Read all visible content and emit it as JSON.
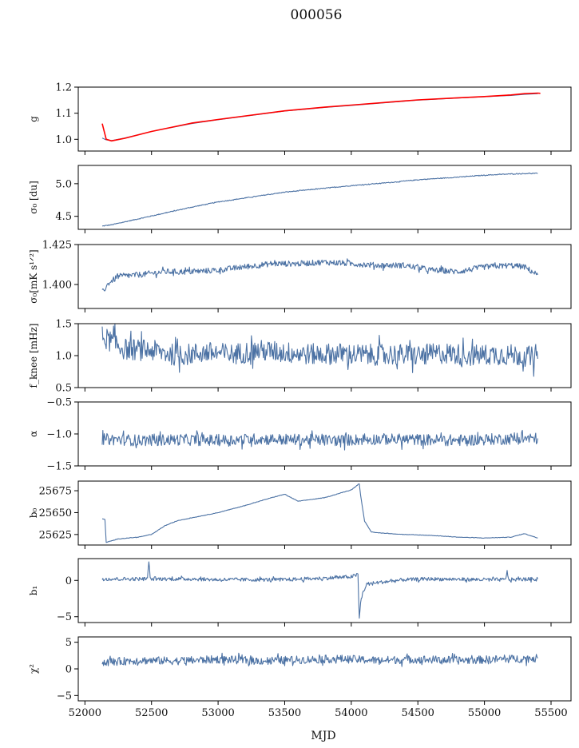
{
  "figure": {
    "title": "000056",
    "xlabel": "MJD"
  },
  "colors": {
    "series": "#4c72a4",
    "model": "#ff0000",
    "axis": "#000000"
  },
  "chart_data": [
    {
      "type": "line",
      "id": "g",
      "ylabel": "g",
      "xlim": [
        51950,
        55650
      ],
      "ylim": [
        0.955,
        1.2
      ],
      "yticks": [
        1.0,
        1.1,
        1.2
      ],
      "ytick_labels": [
        "1.0",
        "1.1",
        "1.2"
      ],
      "xticks": [
        52000,
        52500,
        53000,
        53500,
        54000,
        54500,
        55000,
        55500
      ],
      "show_xtick_labels": false,
      "series": [
        {
          "color": "#4c72a4",
          "x": [
            52130,
            52160,
            52200,
            52300,
            52500,
            52800,
            53000,
            53300,
            53500,
            53800,
            54000,
            54300,
            54500,
            54800,
            55000,
            55200,
            55300,
            55400
          ],
          "y": [
            1.005,
            0.998,
            0.995,
            1.005,
            1.03,
            1.06,
            1.075,
            1.095,
            1.108,
            1.122,
            1.13,
            1.142,
            1.15,
            1.158,
            1.163,
            1.168,
            1.172,
            1.175
          ]
        },
        {
          "color": "#ff0000",
          "x": [
            52130,
            52160,
            52200,
            52300,
            52500,
            52800,
            53000,
            53300,
            53500,
            53800,
            54000,
            54300,
            54500,
            54800,
            55000,
            55200,
            55300,
            55400,
            55420
          ],
          "y": [
            1.06,
            1.0,
            0.994,
            1.004,
            1.03,
            1.062,
            1.076,
            1.096,
            1.109,
            1.123,
            1.131,
            1.143,
            1.151,
            1.159,
            1.164,
            1.17,
            1.175,
            1.177,
            1.176
          ]
        }
      ]
    },
    {
      "type": "line",
      "id": "sigma_du",
      "ylabel": "σ₀ [du]",
      "xlim": [
        51950,
        55650
      ],
      "ylim": [
        4.3,
        5.28
      ],
      "yticks": [
        4.5,
        5.0
      ],
      "ytick_labels": [
        "4.5",
        "5.0"
      ],
      "xticks": [
        52000,
        52500,
        53000,
        53500,
        54000,
        54500,
        55000,
        55500
      ],
      "show_xtick_labels": false,
      "series": [
        {
          "color": "#4c72a4",
          "x": [
            52130,
            52200,
            52400,
            52600,
            52800,
            53000,
            53300,
            53500,
            53800,
            54000,
            54300,
            54500,
            54800,
            55000,
            55200,
            55400
          ],
          "y": [
            4.35,
            4.37,
            4.46,
            4.55,
            4.64,
            4.72,
            4.81,
            4.87,
            4.93,
            4.97,
            5.02,
            5.06,
            5.1,
            5.13,
            5.15,
            5.16
          ]
        }
      ]
    },
    {
      "type": "line",
      "id": "sigma_mks",
      "ylabel": "σ₀[mK s¹ᐟ²]",
      "xlim": [
        51950,
        55650
      ],
      "ylim": [
        1.385,
        1.425
      ],
      "yticks": [
        1.4,
        1.425
      ],
      "ytick_labels": [
        "1.400",
        "1.425"
      ],
      "xticks": [
        52000,
        52500,
        53000,
        53500,
        54000,
        54500,
        55000,
        55500
      ],
      "show_xtick_labels": false,
      "series": [
        {
          "color": "#4c72a4",
          "x": [
            52130,
            52180,
            52250,
            52400,
            52600,
            52800,
            53000,
            53200,
            53400,
            53600,
            53800,
            54000,
            54200,
            54400,
            54600,
            54800,
            55000,
            55200,
            55300,
            55400
          ],
          "y": [
            1.395,
            1.401,
            1.405,
            1.406,
            1.408,
            1.408,
            1.409,
            1.411,
            1.413,
            1.413,
            1.414,
            1.413,
            1.412,
            1.412,
            1.409,
            1.408,
            1.411,
            1.412,
            1.411,
            1.406
          ]
        }
      ]
    },
    {
      "type": "line",
      "id": "fknee",
      "ylabel": "f_knee [mHz]",
      "xlim": [
        51950,
        55650
      ],
      "ylim": [
        0.5,
        1.5
      ],
      "yticks": [
        0.5,
        1.0,
        1.5
      ],
      "ytick_labels": [
        "0.5",
        "1.0",
        "1.5"
      ],
      "xticks": [
        52000,
        52500,
        53000,
        53500,
        54000,
        54500,
        55000,
        55500
      ],
      "show_xtick_labels": false,
      "series": [
        {
          "color": "#4c72a4",
          "x": [
            52130,
            52300,
            52500,
            52700,
            52900,
            53100,
            53300,
            53500,
            53700,
            53900,
            54100,
            54300,
            54500,
            54700,
            54900,
            55100,
            55300,
            55400
          ],
          "y": [
            1.3,
            1.1,
            1.08,
            1.0,
            1.05,
            1.02,
            1.08,
            1.05,
            1.02,
            1.03,
            1.01,
            1.02,
            1.0,
            1.04,
            1.0,
            1.02,
            1.0,
            0.95
          ]
        }
      ]
    },
    {
      "type": "line",
      "id": "alpha",
      "ylabel": "α",
      "xlim": [
        51950,
        55650
      ],
      "ylim": [
        -1.5,
        -0.5
      ],
      "yticks": [
        -1.5,
        -1.0,
        -0.5
      ],
      "ytick_labels": [
        "−1.5",
        "−1.0",
        "−0.5"
      ],
      "xticks": [
        52000,
        52500,
        53000,
        53500,
        54000,
        54500,
        55000,
        55500
      ],
      "show_xtick_labels": false,
      "series": [
        {
          "color": "#4c72a4",
          "x": [
            52130,
            52400,
            52700,
            53000,
            53300,
            53600,
            53900,
            54200,
            54500,
            54800,
            55100,
            55400
          ],
          "y": [
            -1.08,
            -1.1,
            -1.09,
            -1.1,
            -1.08,
            -1.09,
            -1.1,
            -1.08,
            -1.09,
            -1.1,
            -1.08,
            -1.07
          ]
        }
      ]
    },
    {
      "type": "line",
      "id": "b0",
      "ylabel": "b₀",
      "xlim": [
        51950,
        55650
      ],
      "ylim": [
        25613,
        25686
      ],
      "yticks": [
        25625,
        25650,
        25675
      ],
      "ytick_labels": [
        "25625",
        "25650",
        "25675"
      ],
      "xticks": [
        52000,
        52500,
        53000,
        53500,
        54000,
        54500,
        55000,
        55500
      ],
      "show_xtick_labels": false,
      "series": [
        {
          "color": "#4c72a4",
          "x": [
            52130,
            52150,
            52160,
            52250,
            52400,
            52500,
            52600,
            52700,
            52800,
            53000,
            53200,
            53400,
            53500,
            53600,
            53700,
            53800,
            54000,
            54060,
            54070,
            54100,
            54150,
            54200,
            54400,
            54600,
            54800,
            55000,
            55200,
            55300,
            55400
          ],
          "y": [
            25643,
            25642,
            25616,
            25620,
            25622,
            25625,
            25635,
            25641,
            25644,
            25650,
            25658,
            25667,
            25671,
            25663,
            25665,
            25667,
            25676,
            25683,
            25670,
            25640,
            25628,
            25627,
            25625,
            25624,
            25622,
            25621,
            25622,
            25626,
            25621
          ]
        }
      ]
    },
    {
      "type": "line",
      "id": "b1",
      "ylabel": "b₁",
      "xlim": [
        51950,
        55650
      ],
      "ylim": [
        -5.8,
        3.0
      ],
      "yticks": [
        -5,
        0
      ],
      "ytick_labels": [
        "−5",
        "0"
      ],
      "xticks": [
        52000,
        52500,
        53000,
        53500,
        54000,
        54500,
        55000,
        55500
      ],
      "show_xtick_labels": false,
      "series": [
        {
          "color": "#4c72a4",
          "x": [
            52130,
            52470,
            52480,
            52490,
            52800,
            53000,
            53500,
            53800,
            54000,
            54050,
            54060,
            54070,
            54090,
            54120,
            54200,
            54400,
            54600,
            55000,
            55160,
            55170,
            55180,
            55400
          ],
          "y": [
            0.2,
            0.2,
            2.8,
            0.2,
            0.2,
            0.1,
            0.1,
            0.3,
            0.5,
            0.8,
            -5.3,
            -3.0,
            -1.5,
            -0.5,
            -0.3,
            0.1,
            0.2,
            0.1,
            0.1,
            1.5,
            0.1,
            0.2
          ]
        }
      ]
    },
    {
      "type": "line",
      "id": "chi2",
      "ylabel": "χ²",
      "xlim": [
        51950,
        55650
      ],
      "ylim": [
        -6,
        6
      ],
      "yticks": [
        -5,
        0,
        5
      ],
      "ytick_labels": [
        "−5",
        "0",
        "5"
      ],
      "xticks": [
        52000,
        52500,
        53000,
        53500,
        54000,
        54500,
        55000,
        55500
      ],
      "xtick_labels": [
        "52000",
        "52500",
        "53000",
        "53500",
        "54000",
        "54500",
        "55000",
        "55500"
      ],
      "show_xtick_labels": true,
      "series": [
        {
          "color": "#4c72a4",
          "x": [
            52130,
            52400,
            52700,
            53000,
            53300,
            53600,
            53900,
            54200,
            54500,
            54800,
            55100,
            55400
          ],
          "y": [
            1.2,
            1.6,
            1.5,
            1.8,
            1.5,
            1.7,
            1.9,
            1.6,
            1.8,
            1.6,
            1.8,
            2.0
          ]
        }
      ]
    }
  ]
}
